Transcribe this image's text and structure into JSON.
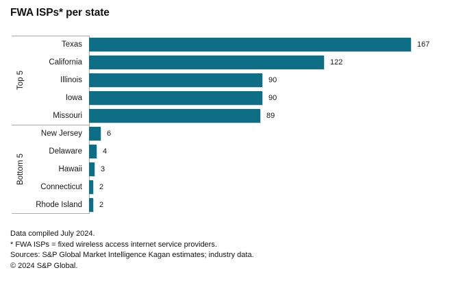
{
  "title": "FWA ISPs* per state",
  "colors": {
    "bar": "#0e6e85",
    "bar_edge": "#bddbe3",
    "axis_line": "#ababab",
    "text": "#161616"
  },
  "chart_data": {
    "type": "bar",
    "orientation": "horizontal",
    "title": "FWA ISPs* per state",
    "xlabel": "",
    "ylabel": "",
    "value_axis": {
      "min": 0,
      "max": 167,
      "ticks_visible": false
    },
    "grid": false,
    "legend": false,
    "groups": [
      {
        "label": "Top 5",
        "rows": [
          {
            "state": "Texas",
            "value": 167
          },
          {
            "state": "California",
            "value": 122
          },
          {
            "state": "Illinois",
            "value": 90
          },
          {
            "state": "Iowa",
            "value": 90
          },
          {
            "state": "Missouri",
            "value": 89
          }
        ]
      },
      {
        "label": "Bottom 5",
        "rows": [
          {
            "state": "New Jersey",
            "value": 6
          },
          {
            "state": "Delaware",
            "value": 4
          },
          {
            "state": "Hawaii",
            "value": 3
          },
          {
            "state": "Connecticut",
            "value": 2
          },
          {
            "state": "Rhode Island",
            "value": 2
          }
        ]
      }
    ]
  },
  "footnotes": [
    "Data compiled July 2024.",
    "* FWA ISPs = fixed wireless access internet service providers.",
    "Sources: S&P Global Market Intelligence Kagan estimates; industry data.",
    "© 2024 S&P Global."
  ]
}
